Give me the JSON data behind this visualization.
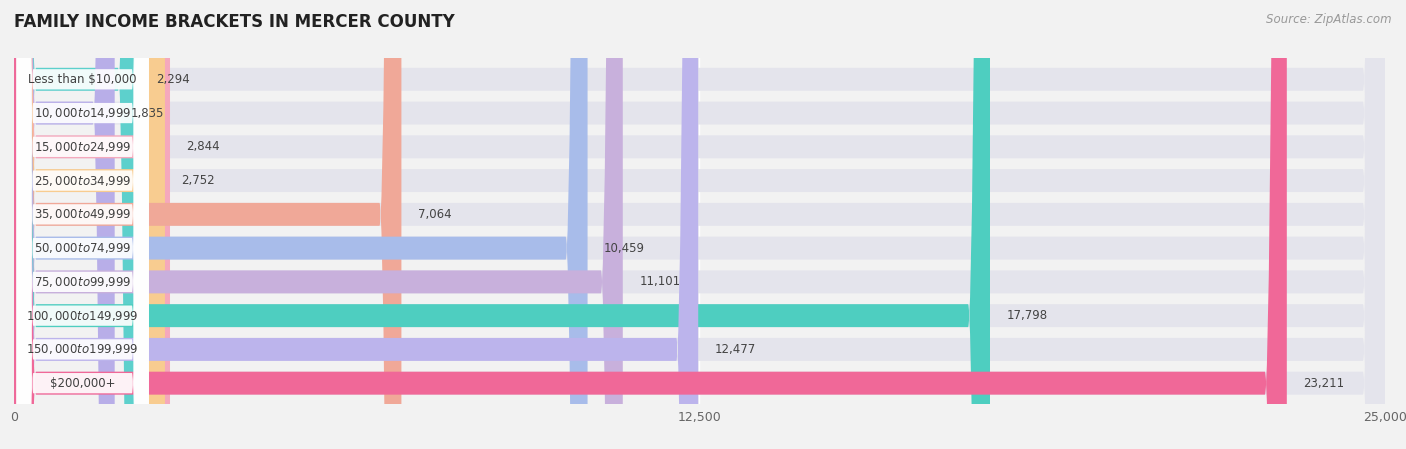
{
  "title": "FAMILY INCOME BRACKETS IN MERCER COUNTY",
  "source": "Source: ZipAtlas.com",
  "categories": [
    "Less than $10,000",
    "$10,000 to $14,999",
    "$15,000 to $24,999",
    "$25,000 to $34,999",
    "$35,000 to $49,999",
    "$50,000 to $74,999",
    "$75,000 to $99,999",
    "$100,000 to $149,999",
    "$150,000 to $199,999",
    "$200,000+"
  ],
  "values": [
    2294,
    1835,
    2844,
    2752,
    7064,
    10459,
    11101,
    17798,
    12477,
    23211
  ],
  "bar_colors": [
    "#5dd0cc",
    "#b8aee8",
    "#f5a8bc",
    "#f8cc90",
    "#f0a898",
    "#a8bcea",
    "#c8b0dc",
    "#4ecec0",
    "#bcb4ec",
    "#f06898"
  ],
  "xlim": [
    0,
    25000
  ],
  "xticks": [
    0,
    12500,
    25000
  ],
  "xtick_labels": [
    "0",
    "12,500",
    "25,000"
  ],
  "background_color": "#f2f2f2",
  "bar_bg_color": "#e4e4ec",
  "title_fontsize": 12,
  "source_fontsize": 8.5,
  "label_fontsize": 8.5,
  "value_fontsize": 8.5
}
